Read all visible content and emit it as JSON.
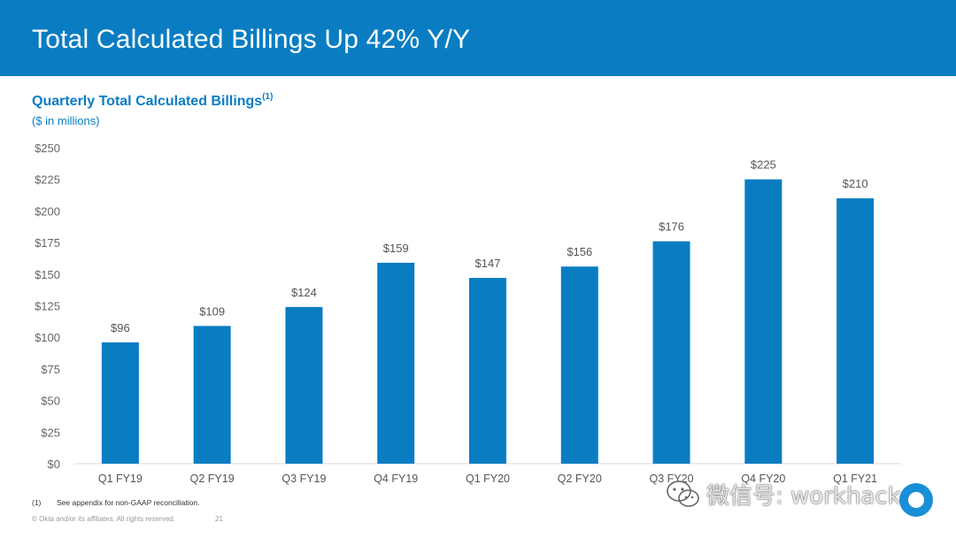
{
  "header": {
    "title": "Total Calculated Billings Up 42% Y/Y"
  },
  "chart_heading": {
    "title": "Quarterly Total Calculated Billings",
    "title_superscript": "(1)",
    "subtitle": "($ in millions)"
  },
  "footer": {
    "footnote_marker": "(1)",
    "footnote_text": "See appendix for non-GAAP reconciliation.",
    "copyright": "© Okta and/or its affiliates. All rights reserved.",
    "page_number": "21"
  },
  "watermark": {
    "text": "微信号: workhacker",
    "logo_icon": "wechat-logo-icon"
  },
  "brand_badge": {
    "icon": "okta-logo-icon",
    "color": "#1a8fd6"
  },
  "colors": {
    "header_bg": "#0a7dc2",
    "bar": "#0a7dc2",
    "title": "#0a7dc2"
  },
  "chart_data": {
    "type": "bar",
    "categories": [
      "Q1 FY19",
      "Q2 FY19",
      "Q3 FY19",
      "Q4 FY19",
      "Q1 FY20",
      "Q2 FY20",
      "Q3 FY20",
      "Q4 FY20",
      "Q1 FY21"
    ],
    "values": [
      96,
      109,
      124,
      159,
      147,
      156,
      176,
      225,
      210
    ],
    "data_labels": [
      "$96",
      "$109",
      "$124",
      "$159",
      "$147",
      "$156",
      "$176",
      "$225",
      "$210"
    ],
    "y_ticks": [
      0,
      25,
      50,
      75,
      100,
      125,
      150,
      175,
      200,
      225,
      250
    ],
    "y_tick_labels": [
      "$0",
      "$25",
      "$50",
      "$75",
      "$100",
      "$125",
      "$150",
      "$175",
      "$200",
      "$225",
      "$250"
    ],
    "ylim": [
      0,
      250
    ],
    "title": "Quarterly Total Calculated Billings",
    "grid": false,
    "legend": "none"
  }
}
